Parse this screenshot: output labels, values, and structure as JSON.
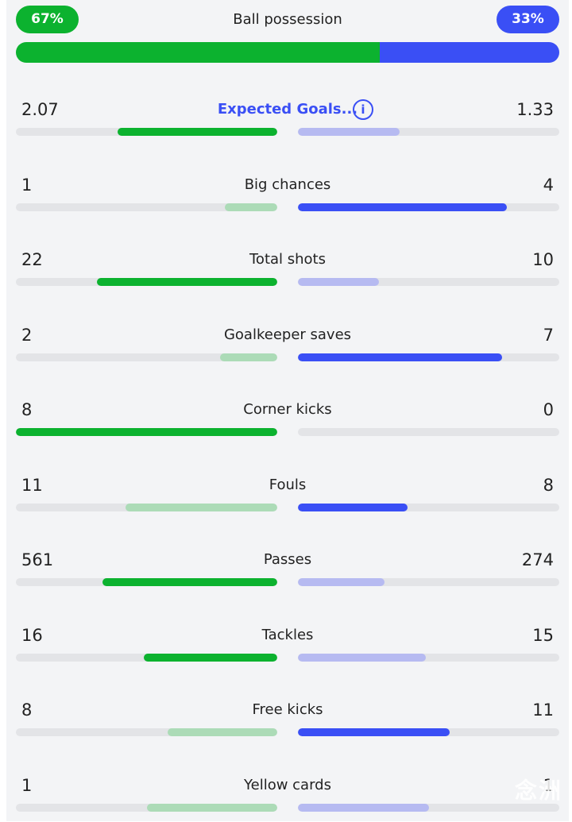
{
  "colors": {
    "home_strong": "#0cb22f",
    "home_light": "#acdbb7",
    "away_strong": "#3a4ff5",
    "away_light": "#b6baf1"
  },
  "possession": {
    "title": "Ball possession",
    "home_label": "67%",
    "away_label": "33%",
    "home_fraction": 0.67
  },
  "stats": [
    {
      "label": "Expected Goals...",
      "home": "2.07",
      "away": "1.33",
      "home_fill": 0.61,
      "away_fill": 0.39,
      "home_strong": true,
      "away_strong": false,
      "is_link": true,
      "info_icon": "info-icon"
    },
    {
      "label": "Big chances",
      "home": "1",
      "away": "4",
      "home_fill": 0.2,
      "away_fill": 0.8,
      "home_strong": false,
      "away_strong": true
    },
    {
      "label": "Total shots",
      "home": "22",
      "away": "10",
      "home_fill": 0.69,
      "away_fill": 0.31,
      "home_strong": true,
      "away_strong": false
    },
    {
      "label": "Goalkeeper saves",
      "home": "2",
      "away": "7",
      "home_fill": 0.22,
      "away_fill": 0.78,
      "home_strong": false,
      "away_strong": true
    },
    {
      "label": "Corner kicks",
      "home": "8",
      "away": "0",
      "home_fill": 1.0,
      "away_fill": 0.0,
      "home_strong": true,
      "away_strong": false
    },
    {
      "label": "Fouls",
      "home": "11",
      "away": "8",
      "home_fill": 0.58,
      "away_fill": 0.42,
      "home_strong": false,
      "away_strong": true
    },
    {
      "label": "Passes",
      "home": "561",
      "away": "274",
      "home_fill": 0.67,
      "away_fill": 0.33,
      "home_strong": true,
      "away_strong": false
    },
    {
      "label": "Tackles",
      "home": "16",
      "away": "15",
      "home_fill": 0.51,
      "away_fill": 0.49,
      "home_strong": true,
      "away_strong": false
    },
    {
      "label": "Free kicks",
      "home": "8",
      "away": "11",
      "home_fill": 0.42,
      "away_fill": 0.58,
      "home_strong": false,
      "away_strong": true
    },
    {
      "label": "Yellow cards",
      "home": "1",
      "away": "1",
      "home_fill": 0.5,
      "away_fill": 0.5,
      "home_strong": false,
      "away_strong": false
    }
  ],
  "watermark": "念洲"
}
